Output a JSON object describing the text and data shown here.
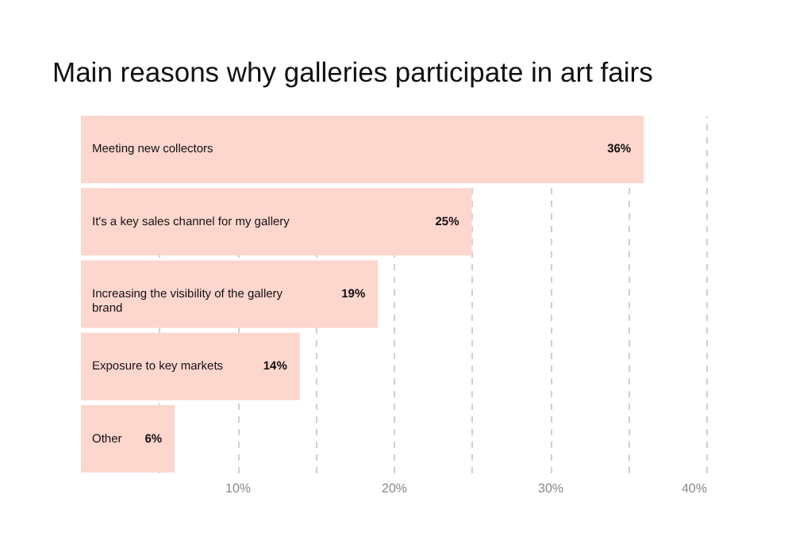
{
  "chart_data": {
    "type": "bar",
    "orientation": "horizontal",
    "title": "Main reasons why galleries participate in art fairs",
    "categories": [
      "Meeting new collectors",
      "It's a key sales channel for my gallery",
      "Increasing the visibility of the gallery brand",
      "Exposure to key markets",
      "Other"
    ],
    "values": [
      36,
      25,
      19,
      14,
      6
    ],
    "value_labels": [
      "36%",
      "25%",
      "19%",
      "14%",
      "6%"
    ],
    "color": "#fdd6cd",
    "xlim": [
      0,
      40
    ],
    "xticks": [
      {
        "value": 5,
        "label": null
      },
      {
        "value": 10,
        "label": "10%"
      },
      {
        "value": 15,
        "label": null
      },
      {
        "value": 20,
        "label": "20%"
      },
      {
        "value": 25,
        "label": null
      },
      {
        "value": 30,
        "label": "30%"
      },
      {
        "value": 35,
        "label": null
      },
      {
        "value": 40,
        "label": "40%"
      }
    ],
    "grid": "x",
    "tick_labels": "x"
  }
}
